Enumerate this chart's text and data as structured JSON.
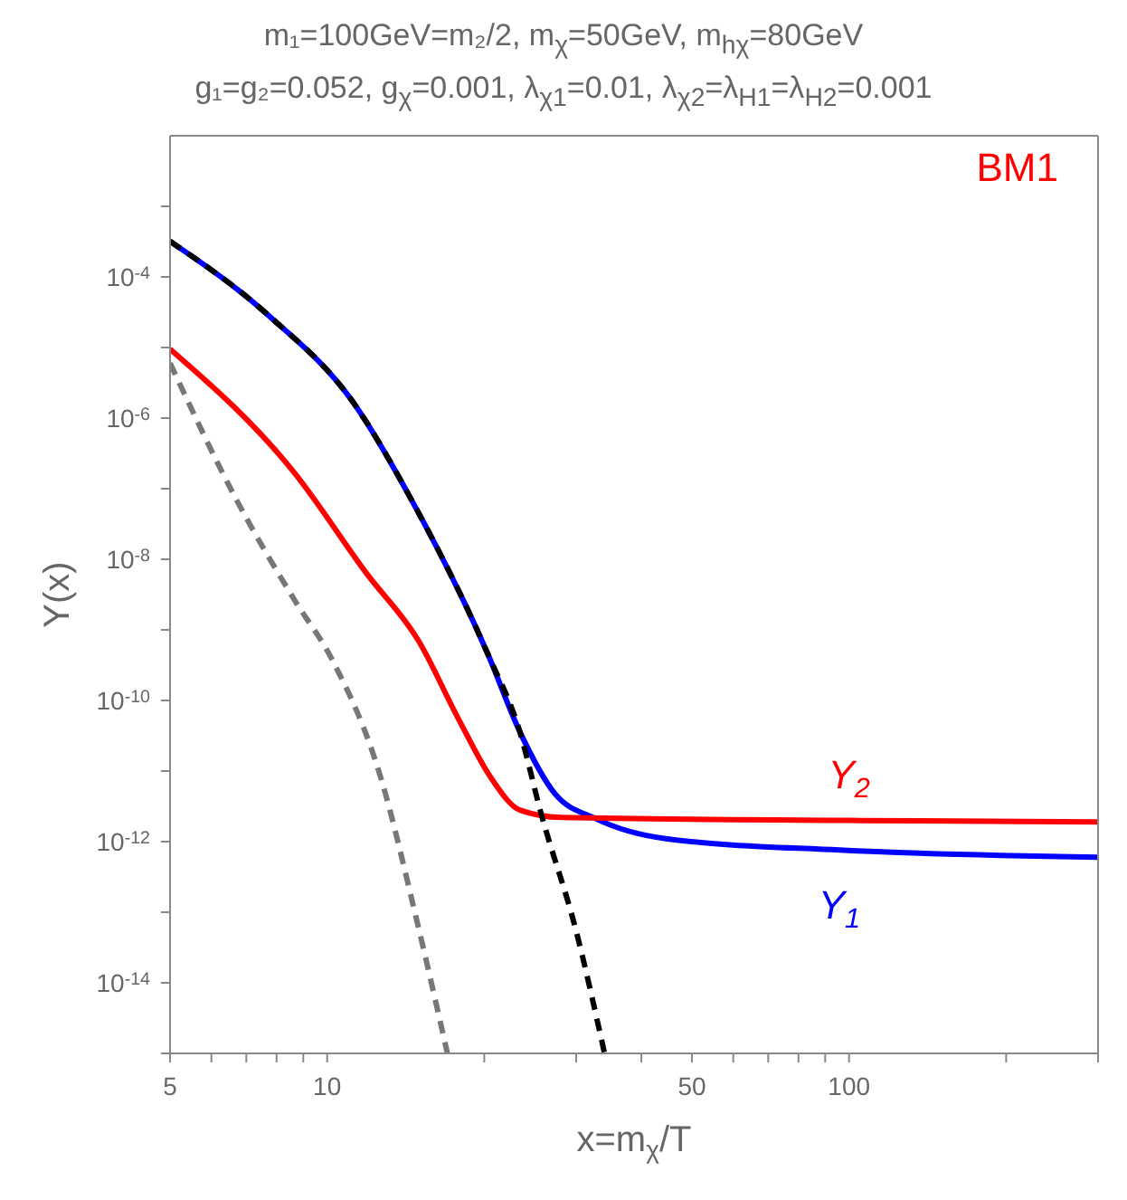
{
  "chart_data": {
    "type": "line",
    "title": "m₁=100GeV=m₂/2, m$_{χ}$=50GeV, m$_{hχ}$=80GeV",
    "subtitle": "g₁=g₂=0.052, g$_{χ}$=0.001, λ$_{χ1}$=0.01, λ$_{χ2}$=λ$_{H1}$=λ$_{H2}$=0.001",
    "xlabel": "x=m$_{χ}$/T",
    "ylabel": "Y(x)",
    "annotations": [
      "BM1"
    ],
    "log": "xy",
    "marker": "none",
    "xlim": [
      5,
      300
    ],
    "ylim": [
      1e-15,
      0.01
    ],
    "xticks": [
      5,
      {
        "value": 6,
        "label": null
      },
      {
        "value": 7,
        "label": null
      },
      {
        "value": 8,
        "label": null
      },
      {
        "value": 9,
        "label": null
      },
      10,
      {
        "value": 20,
        "label": null
      },
      {
        "value": 30,
        "label": null
      },
      {
        "value": 40,
        "label": null
      },
      50,
      {
        "value": 60,
        "label": null
      },
      {
        "value": 70,
        "label": null
      },
      {
        "value": 80,
        "label": null
      },
      {
        "value": 90,
        "label": null
      },
      100,
      {
        "value": 200,
        "label": null
      },
      {
        "value": 300,
        "label": null
      }
    ],
    "yticks": [
      {
        "value": 1e-15,
        "label": null
      },
      {
        "value": 1e-14,
        "label": "10$^{-14}$"
      },
      {
        "value": 1e-13,
        "label": null
      },
      {
        "value": 1e-12,
        "label": "10$^{-12}$"
      },
      {
        "value": 1e-11,
        "label": null
      },
      {
        "value": 1e-10,
        "label": "10$^{-10}$"
      },
      {
        "value": 1e-09,
        "label": null
      },
      {
        "value": 1e-08,
        "label": "10$^{-8}$"
      },
      {
        "value": 1e-07,
        "label": null
      },
      {
        "value": 1e-06,
        "label": "10$^{-6}$"
      },
      {
        "value": 1e-05,
        "label": null
      },
      {
        "value": 0.0001,
        "label": "10$^{-4}$"
      },
      {
        "value": 0.001,
        "label": null
      }
    ],
    "series": [
      {
        "name": "Y$_{1}$",
        "color": "#0000ff",
        "line_style": "solid",
        "x": [
          5,
          7.7,
          11.2,
          14.5,
          20.3,
          23.4,
          27.3,
          32.8,
          44.6,
          95.8,
          300
        ],
        "values": [
          0.00032,
          2.9e-05,
          1.7e-06,
          7e-08,
          4.6e-10,
          3.6e-11,
          4.8e-12,
          2.1e-12,
          1.1e-12,
          7.6e-13,
          6e-13
        ]
      },
      {
        "name": "Y$_{2}$",
        "color": "#ff0000",
        "line_style": "solid",
        "x": [
          5,
          8.7,
          11.9,
          15.0,
          17.8,
          20.7,
          23.4,
          28.1,
          100,
          300
        ],
        "values": [
          9.5e-06,
          1.6e-07,
          6.3e-09,
          6.8e-10,
          5.7e-11,
          7.6e-12,
          2.8e-12,
          2.2e-12,
          2e-12,
          1.9e-12
        ]
      },
      {
        "color": "#000000",
        "line_style": "dashed",
        "x": [
          5,
          7.7,
          11.2,
          14.5,
          20.3,
          23.4,
          25.7,
          30,
          34
        ],
        "values": [
          0.00032,
          2.9e-05,
          1.7e-06,
          7e-08,
          4.6e-10,
          3.6e-11,
          2.5e-12,
          5.4e-14,
          1e-15
        ]
      },
      {
        "color": "#777777",
        "line_style": "dashed",
        "x": [
          5,
          6.7,
          8.7,
          10.2,
          12.7,
          14.8,
          17.0
        ],
        "values": [
          6e-06,
          7e-08,
          2.5e-09,
          3.9e-10,
          7.6e-12,
          8.5e-14,
          1e-15
        ]
      }
    ]
  }
}
